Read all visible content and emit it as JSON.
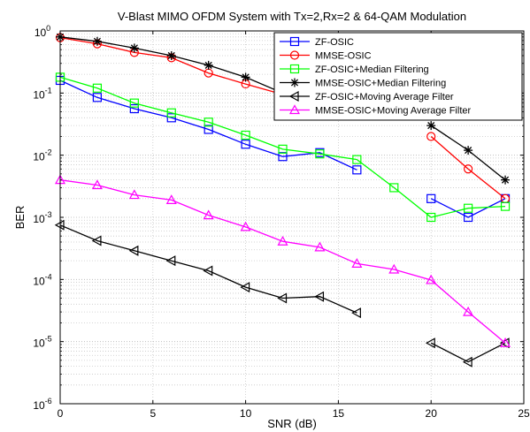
{
  "chart_data": {
    "type": "line",
    "title": "V-Blast MIMO OFDM System with Tx=2,Rx=2 & 64-QAM Modulation",
    "xlabel": "SNR (dB)",
    "ylabel": "BER",
    "xlim": [
      0,
      25
    ],
    "ylim": [
      1e-06,
      1
    ],
    "yscale": "log",
    "grid": true,
    "legend_position": "top-right",
    "x_ticks": [
      {
        "value": 0,
        "label": "0"
      },
      {
        "value": 5,
        "label": "5"
      },
      {
        "value": 10,
        "label": "10"
      },
      {
        "value": 15,
        "label": "15"
      },
      {
        "value": 20,
        "label": "20"
      },
      {
        "value": 25,
        "label": "25"
      }
    ],
    "y_ticks": [
      {
        "exp": 0,
        "base": "10",
        "sup": "0"
      },
      {
        "exp": -1,
        "base": "10",
        "sup": "-1"
      },
      {
        "exp": -2,
        "base": "10",
        "sup": "-2"
      },
      {
        "exp": -3,
        "base": "10",
        "sup": "-3"
      },
      {
        "exp": -4,
        "base": "10",
        "sup": "-4"
      },
      {
        "exp": -5,
        "base": "10",
        "sup": "-5"
      },
      {
        "exp": -6,
        "base": "10",
        "sup": "-6"
      }
    ],
    "series": [
      {
        "name": "ZF-OSIC",
        "color": "#0000ff",
        "marker": "square",
        "segments": [
          [
            [
              0,
              0.16
            ],
            [
              2,
              0.085
            ],
            [
              4,
              0.056
            ],
            [
              6,
              0.04
            ],
            [
              8,
              0.026
            ],
            [
              10,
              0.015
            ],
            [
              12,
              0.0095
            ],
            [
              14,
              0.011
            ],
            [
              16,
              0.0058
            ]
          ],
          [
            [
              20,
              0.002
            ],
            [
              22,
              0.001
            ],
            [
              24,
              0.002
            ]
          ]
        ]
      },
      {
        "name": "MMSE-OSIC",
        "color": "#ff0000",
        "marker": "circle",
        "segments": [
          [
            [
              0,
              0.78
            ],
            [
              2,
              0.62
            ],
            [
              4,
              0.45
            ],
            [
              6,
              0.37
            ],
            [
              8,
              0.21
            ],
            [
              10,
              0.14
            ],
            [
              12,
              0.095
            ]
          ],
          [
            [
              20,
              0.02
            ],
            [
              22,
              0.006
            ],
            [
              24,
              0.002
            ]
          ]
        ]
      },
      {
        "name": "ZF-OSIC+Median Filtering",
        "color": "#00ff00",
        "marker": "square",
        "segments": [
          [
            [
              0,
              0.18
            ],
            [
              2,
              0.12
            ],
            [
              4,
              0.069
            ],
            [
              6,
              0.048
            ],
            [
              8,
              0.034
            ],
            [
              10,
              0.021
            ],
            [
              12,
              0.0125
            ],
            [
              14,
              0.0105
            ],
            [
              16,
              0.0085
            ],
            [
              18,
              0.003
            ],
            [
              20,
              0.001
            ],
            [
              22,
              0.0014
            ],
            [
              24,
              0.0015
            ]
          ]
        ]
      },
      {
        "name": "MMSE-OSIC+Median Filtering",
        "color": "#000000",
        "marker": "star",
        "segments": [
          [
            [
              0,
              0.8
            ],
            [
              2,
              0.68
            ],
            [
              4,
              0.53
            ],
            [
              6,
              0.4
            ],
            [
              8,
              0.28
            ],
            [
              10,
              0.18
            ],
            [
              12,
              0.1
            ]
          ],
          [
            [
              20,
              0.03
            ],
            [
              22,
              0.012
            ],
            [
              24,
              0.004
            ]
          ]
        ]
      },
      {
        "name": "ZF-OSIC+Moving Average Filter",
        "color": "#000000",
        "marker": "triangle-left",
        "segments": [
          [
            [
              0,
              0.00075
            ],
            [
              2,
              0.00042
            ],
            [
              4,
              0.00029
            ],
            [
              6,
              0.0002
            ],
            [
              8,
              0.000138
            ],
            [
              10,
              7.5e-05
            ],
            [
              12,
              5e-05
            ],
            [
              14,
              5.3e-05
            ],
            [
              16,
              2.9e-05
            ]
          ],
          [
            [
              20,
              9.5e-06
            ],
            [
              22,
              4.7e-06
            ],
            [
              24,
              9.5e-06
            ]
          ]
        ]
      },
      {
        "name": "MMSE-OSIC+Moving Average Filter",
        "color": "#ff00ff",
        "marker": "triangle-up",
        "segments": [
          [
            [
              0,
              0.004
            ],
            [
              2,
              0.0033
            ],
            [
              4,
              0.0023
            ],
            [
              6,
              0.0019
            ],
            [
              8,
              0.00108
            ],
            [
              10,
              0.0007
            ],
            [
              12,
              0.00041
            ],
            [
              14,
              0.00033
            ],
            [
              16,
              0.00018
            ],
            [
              18,
              0.000145
            ],
            [
              20,
              9.8e-05
            ],
            [
              22,
              3e-05
            ],
            [
              24,
              9.5e-06
            ]
          ]
        ]
      }
    ]
  }
}
